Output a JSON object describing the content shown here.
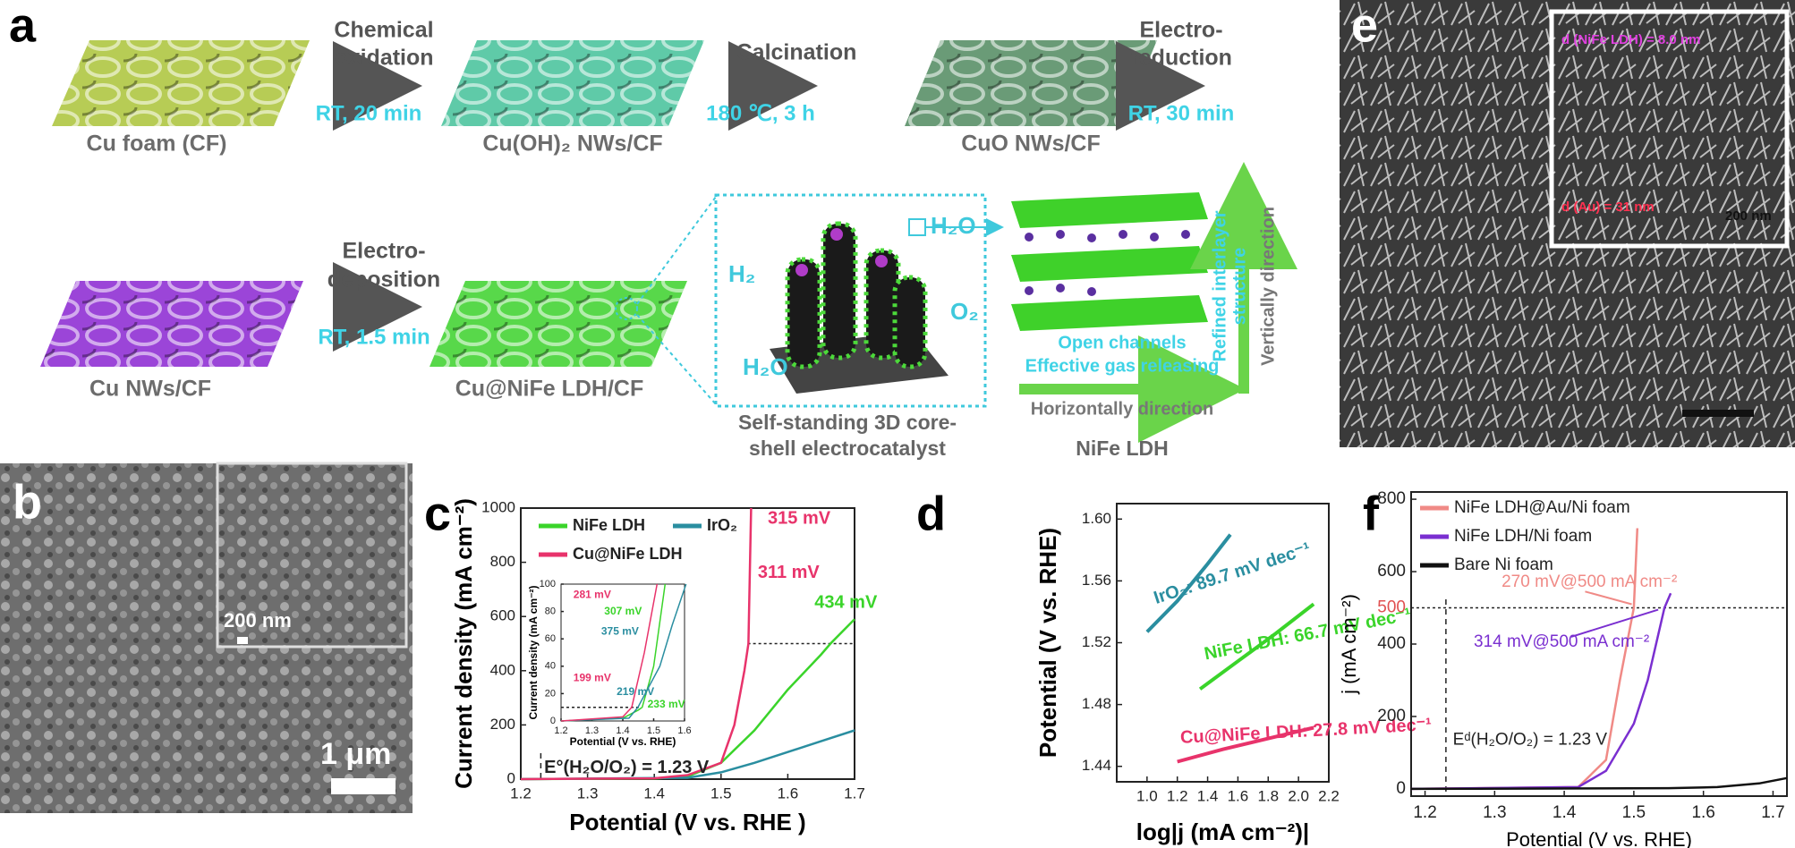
{
  "panel_a": {
    "label": "a",
    "step1_line1": "Chemical",
    "step1_line2": "oxidation",
    "step1_condition": "RT, 20 min",
    "step2": "Calcination",
    "step2_condition": "180 ℃, 3 h",
    "step3_line1": "Electro-",
    "step3_line2": "reduction",
    "step3_condition": "RT, 30 min",
    "step4_line1": "Electro-",
    "step4_line2": "deposition",
    "step4_condition": "RT, 1.5 min",
    "materials": [
      "Cu foam (CF)",
      "Cu(OH)₂ NWs/CF",
      "CuO NWs/CF",
      "Cu NWs/CF",
      "Cu@NiFe LDH/CF"
    ],
    "catalyst_line1": "Self-standing 3D core-",
    "catalyst_line2": "shell electrocatalyst",
    "species": [
      "H₂",
      "H₂O",
      "H₂O",
      "O₂"
    ],
    "ldh": {
      "open": "Open channels",
      "gas": "Effective gas releasing",
      "horizontal": "Horizontally direction",
      "vertical": "Vertically direction",
      "refined_line1": "Refined interlayer",
      "refined_line2": "structure",
      "name": "NiFe LDH"
    }
  },
  "panel_b": {
    "label": "b",
    "inset_scale": "200 nm",
    "scale": "1 μm"
  },
  "panel_e": {
    "label": "e",
    "inset_d_ldh": "d (NiFe LDH) = 8.0 nm",
    "inset_d_au": "d (Au) = 31 nm",
    "inset_scale": "200 nm"
  },
  "chart_data": [
    {
      "type": "line",
      "label": "c",
      "xlabel": "Potential (V vs. RHE )",
      "ylabel": "Current density (mA cm⁻²)",
      "xlim": [
        1.2,
        1.7
      ],
      "ylim": [
        0,
        1000
      ],
      "xticks": [
        1.2,
        1.3,
        1.4,
        1.5,
        1.6,
        1.7
      ],
      "yticks": [
        0,
        200,
        400,
        600,
        800,
        1000
      ],
      "legend": true,
      "vline": 1.23,
      "hline": 500,
      "series": [
        {
          "name": "NiFe LDH",
          "color": "#3ad42a",
          "x": [
            1.2,
            1.4,
            1.45,
            1.5,
            1.55,
            1.6,
            1.65,
            1.664,
            1.7
          ],
          "values": [
            0,
            2,
            10,
            60,
            180,
            330,
            460,
            500,
            590
          ]
        },
        {
          "name": "IrO₂",
          "color": "#2a8ea0",
          "x": [
            1.2,
            1.45,
            1.5,
            1.55,
            1.6,
            1.65,
            1.7
          ],
          "values": [
            0,
            5,
            25,
            60,
            100,
            140,
            180
          ]
        },
        {
          "name": "Cu@NiFe LDH",
          "color": "#e8336b",
          "x": [
            1.2,
            1.4,
            1.45,
            1.5,
            1.52,
            1.535,
            1.541,
            1.545
          ],
          "values": [
            0,
            3,
            15,
            60,
            200,
            400,
            500,
            1000
          ]
        }
      ],
      "annotations": [
        "315 mV",
        "311 mV",
        "434 mV",
        "E°(H₂O/O₂) = 1.23 V"
      ]
    },
    {
      "type": "line",
      "label": null,
      "xlabel": "Potential (V vs. RHE)",
      "ylabel": "Current density (mA cm⁻²)",
      "xlim": [
        1.2,
        1.6
      ],
      "ylim": [
        0,
        100
      ],
      "xticks": [
        1.2,
        1.3,
        1.4,
        1.5,
        1.6
      ],
      "yticks": [
        0,
        20,
        40,
        60,
        80,
        100
      ],
      "legend": false,
      "hline": 10,
      "series": [
        {
          "color": "#3ad42a",
          "x": [
            1.2,
            1.4,
            1.45,
            1.463,
            1.5,
            1.537
          ],
          "values": [
            0,
            2,
            8,
            10,
            40,
            100
          ]
        },
        {
          "color": "#2a8ea0",
          "x": [
            1.2,
            1.42,
            1.449,
            1.52,
            1.56,
            1.605
          ],
          "values": [
            0,
            2,
            10,
            40,
            70,
            100
          ]
        },
        {
          "color": "#e8336b",
          "x": [
            1.2,
            1.4,
            1.429,
            1.47,
            1.511
          ],
          "values": [
            0,
            3,
            10,
            50,
            100
          ]
        }
      ],
      "annotations": [
        "281 mV",
        "307 mV",
        "375 mV",
        "199 mV",
        "219 mV",
        "233 mV"
      ]
    },
    {
      "type": "line",
      "label": "d",
      "xlabel": "log|j (mA cm⁻²)|",
      "ylabel": "Potential (V vs. RHE)",
      "xlim": [
        0.8,
        2.2
      ],
      "ylim": [
        1.43,
        1.61
      ],
      "xticks": [
        {
          "value": 1,
          "label": "1.0"
        },
        1.2,
        1.4,
        1.6,
        1.8,
        {
          "value": 2,
          "label": "2.0"
        },
        2.2
      ],
      "yticks": [
        1.44,
        1.48,
        1.52,
        1.56,
        {
          "value": 1.6,
          "label": "1.60"
        }
      ],
      "legend": false,
      "series": [
        {
          "color": "#2a8ea0",
          "x": [
            1.0,
            1.2,
            1.4,
            1.55
          ],
          "values": [
            1.527,
            1.547,
            1.571,
            1.59
          ]
        },
        {
          "color": "#3ad42a",
          "x": [
            1.35,
            1.6,
            1.85,
            2.1
          ],
          "values": [
            1.49,
            1.508,
            1.526,
            1.545
          ]
        },
        {
          "color": "#e8336b",
          "x": [
            1.2,
            1.5,
            1.8,
            2.1
          ],
          "values": [
            1.443,
            1.451,
            1.458,
            1.465
          ]
        }
      ],
      "annotations": [
        "IrO₂: 89.7 mV dec⁻¹",
        "NiFe LDH: 66.7 mV dec⁻¹",
        "Cu@NiFe LDH: 27.8 mV dec⁻¹"
      ]
    },
    {
      "type": "line",
      "label": "f",
      "xlabel": "Potential (V vs. RHE)",
      "ylabel": "j (mA cm⁻²)",
      "xlim": [
        1.18,
        1.72
      ],
      "ylim": [
        -20,
        820
      ],
      "xticks": [
        1.2,
        1.3,
        1.4,
        1.5,
        1.6,
        1.7
      ],
      "yticks": [
        0,
        200,
        400,
        600,
        800
      ],
      "legend": true,
      "vline": 1.23,
      "hline": 500,
      "series": [
        {
          "name": "NiFe LDH@Au/Ni foam",
          "color": "#f08a86",
          "x": [
            1.18,
            1.42,
            1.46,
            1.48,
            1.5,
            1.505
          ],
          "values": [
            0,
            5,
            80,
            300,
            500,
            720
          ]
        },
        {
          "name": "NiFe LDH/Ni foam",
          "color": "#7a2fd0",
          "x": [
            1.18,
            1.42,
            1.46,
            1.5,
            1.52,
            1.544,
            1.553
          ],
          "values": [
            0,
            5,
            50,
            180,
            300,
            500,
            540
          ]
        },
        {
          "name": "Bare Ni foam",
          "color": "#111111",
          "x": [
            1.18,
            1.55,
            1.62,
            1.68,
            1.72
          ],
          "values": [
            0,
            2,
            5,
            15,
            30
          ]
        }
      ],
      "annotations": [
        "270 mV@500 mA cm⁻²",
        "314 mV@500 mA cm⁻²",
        "Eᵈ(H₂O/O₂) = 1.23 V"
      ]
    }
  ]
}
